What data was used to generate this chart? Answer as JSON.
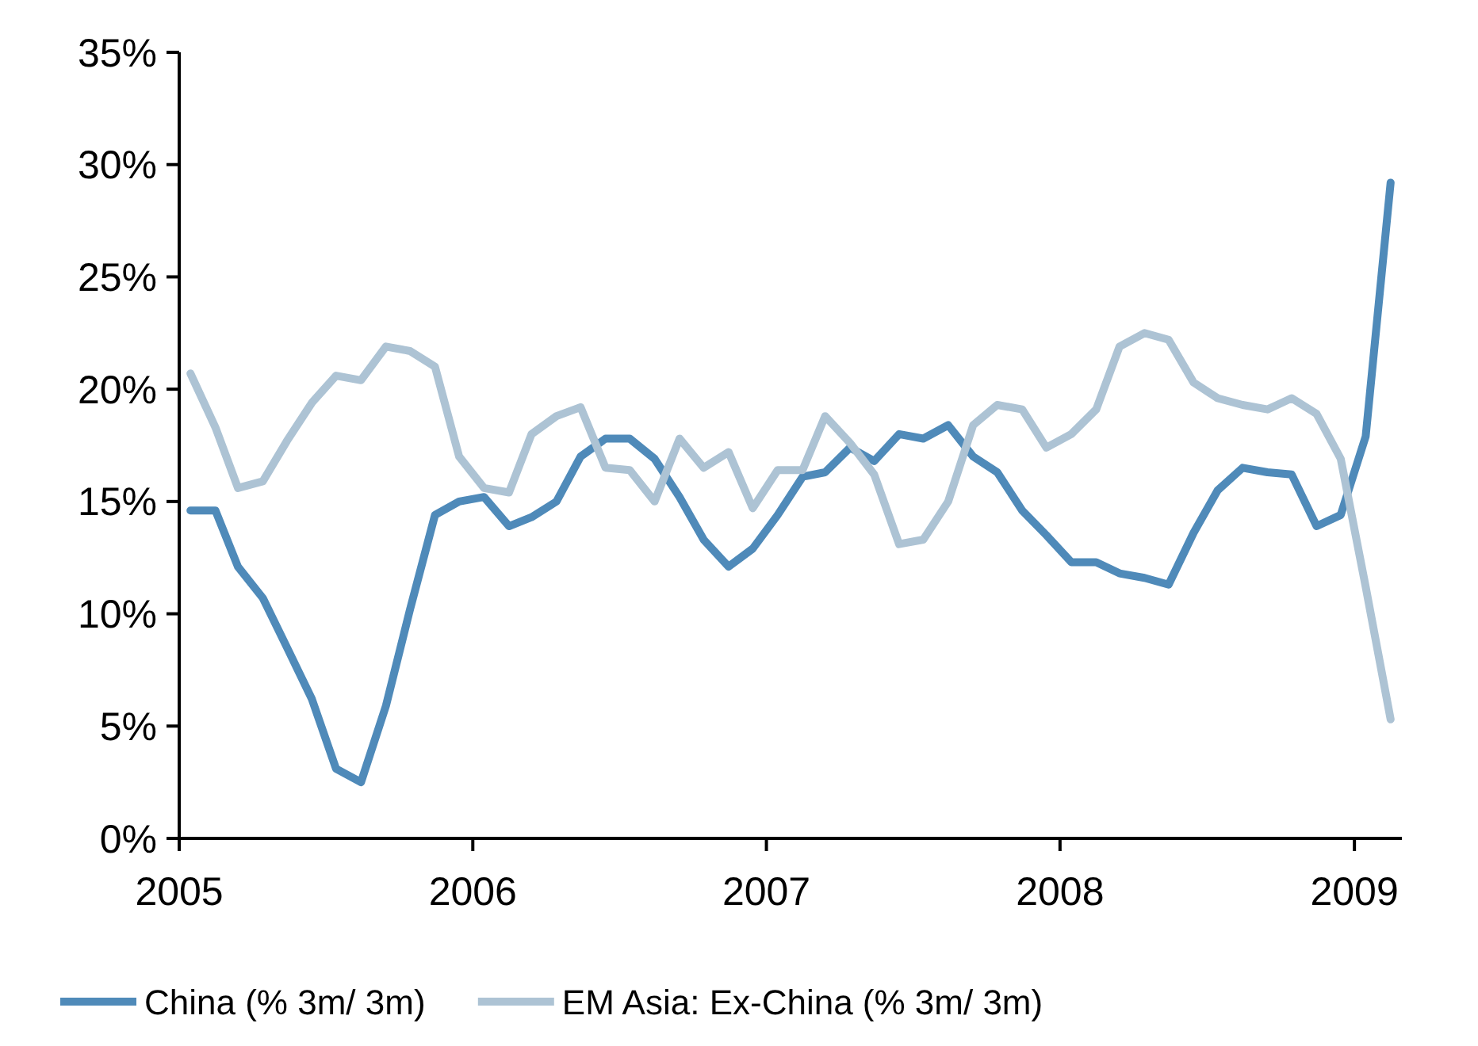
{
  "chart_data": {
    "type": "line",
    "x": [
      "2005-01-15",
      "2005-02-15",
      "2005-03-15",
      "2005-04-15",
      "2005-05-15",
      "2005-06-15",
      "2005-07-15",
      "2005-08-15",
      "2005-09-15",
      "2005-10-15",
      "2005-11-15",
      "2005-12-15",
      "2006-01-15",
      "2006-02-15",
      "2006-03-15",
      "2006-04-15",
      "2006-05-15",
      "2006-06-15",
      "2006-07-15",
      "2006-08-15",
      "2006-09-15",
      "2006-10-15",
      "2006-11-15",
      "2006-12-15",
      "2007-01-15",
      "2007-02-15",
      "2007-03-15",
      "2007-04-15",
      "2007-05-15",
      "2007-06-15",
      "2007-07-15",
      "2007-08-15",
      "2007-09-15",
      "2007-10-15",
      "2007-11-15",
      "2007-12-15",
      "2008-01-15",
      "2008-02-15",
      "2008-03-15",
      "2008-04-15",
      "2008-05-15",
      "2008-06-15",
      "2008-07-15",
      "2008-08-15",
      "2008-09-15",
      "2008-10-15",
      "2008-11-15",
      "2008-12-15",
      "2009-01-15",
      "2009-02-15"
    ],
    "series": [
      {
        "name": "China  (% 3m/ 3m)",
        "color": "#4f8ab9",
        "values": [
          14.6,
          14.6,
          12.1,
          10.7,
          8.5,
          6.2,
          3.1,
          2.5,
          5.9,
          10.2,
          14.4,
          15.0,
          15.2,
          13.9,
          14.3,
          15.0,
          17.0,
          17.8,
          17.8,
          16.9,
          15.2,
          13.3,
          12.1,
          12.9,
          14.4,
          16.1,
          16.3,
          17.4,
          16.8,
          18.0,
          17.8,
          18.4,
          17.0,
          16.3,
          14.6,
          13.5,
          12.3,
          12.3,
          11.8,
          11.6,
          11.3,
          13.6,
          15.5,
          16.5,
          16.3,
          16.2,
          13.9,
          14.4,
          17.9,
          29.2
        ]
      },
      {
        "name": "EM Asia: Ex-China (% 3m/ 3m)",
        "color": "#adc3d4",
        "values": [
          20.7,
          18.3,
          15.6,
          15.9,
          17.7,
          19.4,
          20.6,
          20.4,
          21.9,
          21.7,
          21.0,
          17.0,
          15.6,
          15.4,
          18.0,
          18.8,
          19.2,
          16.5,
          16.4,
          15.0,
          17.8,
          16.5,
          17.2,
          14.7,
          16.4,
          16.4,
          18.8,
          17.6,
          16.2,
          13.1,
          13.3,
          15.0,
          18.4,
          19.3,
          19.1,
          17.4,
          18.0,
          19.1,
          21.9,
          22.5,
          22.2,
          20.3,
          19.6,
          19.3,
          19.1,
          19.6,
          18.9,
          16.9,
          11.2,
          5.3
        ]
      }
    ],
    "xlim": [
      "2005-01-01",
      "2009-03-01"
    ],
    "xticks": [
      "2005",
      "2006",
      "2007",
      "2008",
      "2009"
    ],
    "ylim": [
      0,
      35
    ],
    "yticks": [
      {
        "value": 0,
        "label": "0%"
      },
      {
        "value": 5,
        "label": "5%"
      },
      {
        "value": 10,
        "label": "10%"
      },
      {
        "value": 15,
        "label": "15%"
      },
      {
        "value": 20,
        "label": "20%"
      },
      {
        "value": 25,
        "label": "25%"
      },
      {
        "value": 30,
        "label": "30%"
      },
      {
        "value": 35,
        "label": "35%"
      }
    ],
    "grid": false,
    "legend": "bottom",
    "marker": "none",
    "line_style": "solid"
  }
}
